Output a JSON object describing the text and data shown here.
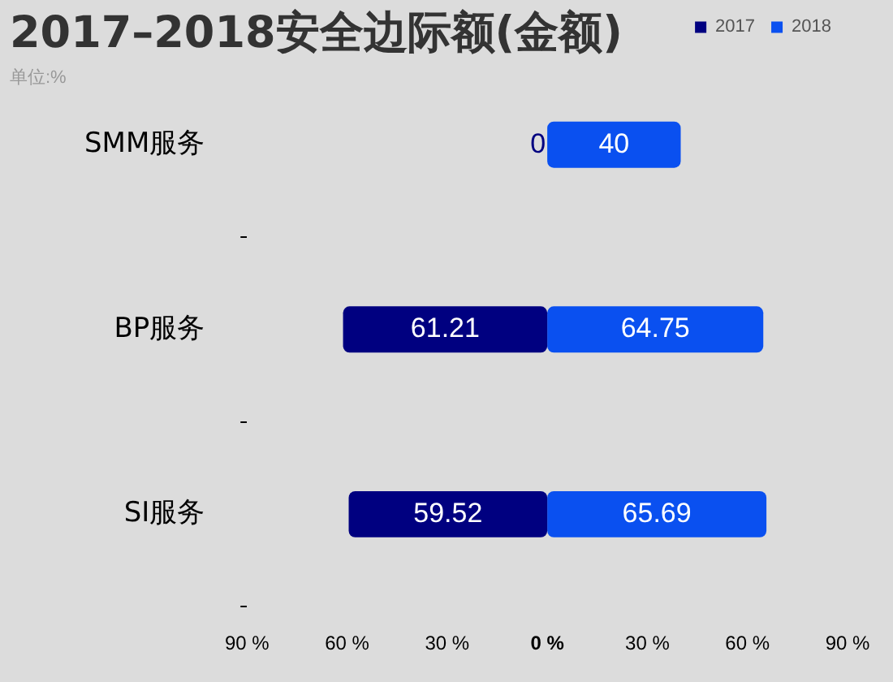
{
  "chart_data": {
    "type": "bar",
    "orientation": "horizontal",
    "title": "2017–2018安全边际额(金额)",
    "subtitle": "单位:%",
    "legend": "top right",
    "categories": [
      "SMM服务",
      "BP服务",
      "SI服务"
    ],
    "series": [
      {
        "name": "2017",
        "color": "#000080",
        "base": [
          null,
          -61.21,
          -59.52
        ],
        "values": [
          0,
          61.21,
          59.52
        ],
        "value_labels": [
          "0",
          "61.21",
          "59.52"
        ]
      },
      {
        "name": "2018",
        "color": "#0a50f0",
        "values": [
          40,
          64.75,
          65.69
        ],
        "value_labels": [
          "40",
          "64.75",
          "65.69"
        ]
      }
    ],
    "xlim": [
      -90,
      90
    ],
    "xticks": [
      {
        "value": -90,
        "label": "90 %"
      },
      {
        "value": -60,
        "label": "60 %"
      },
      {
        "value": -30,
        "label": "30 %"
      },
      {
        "value": 0,
        "label": "0 %"
      },
      {
        "value": 30,
        "label": "30 %"
      },
      {
        "value": 60,
        "label": "60 %"
      },
      {
        "value": 90,
        "label": "90 %"
      }
    ]
  }
}
